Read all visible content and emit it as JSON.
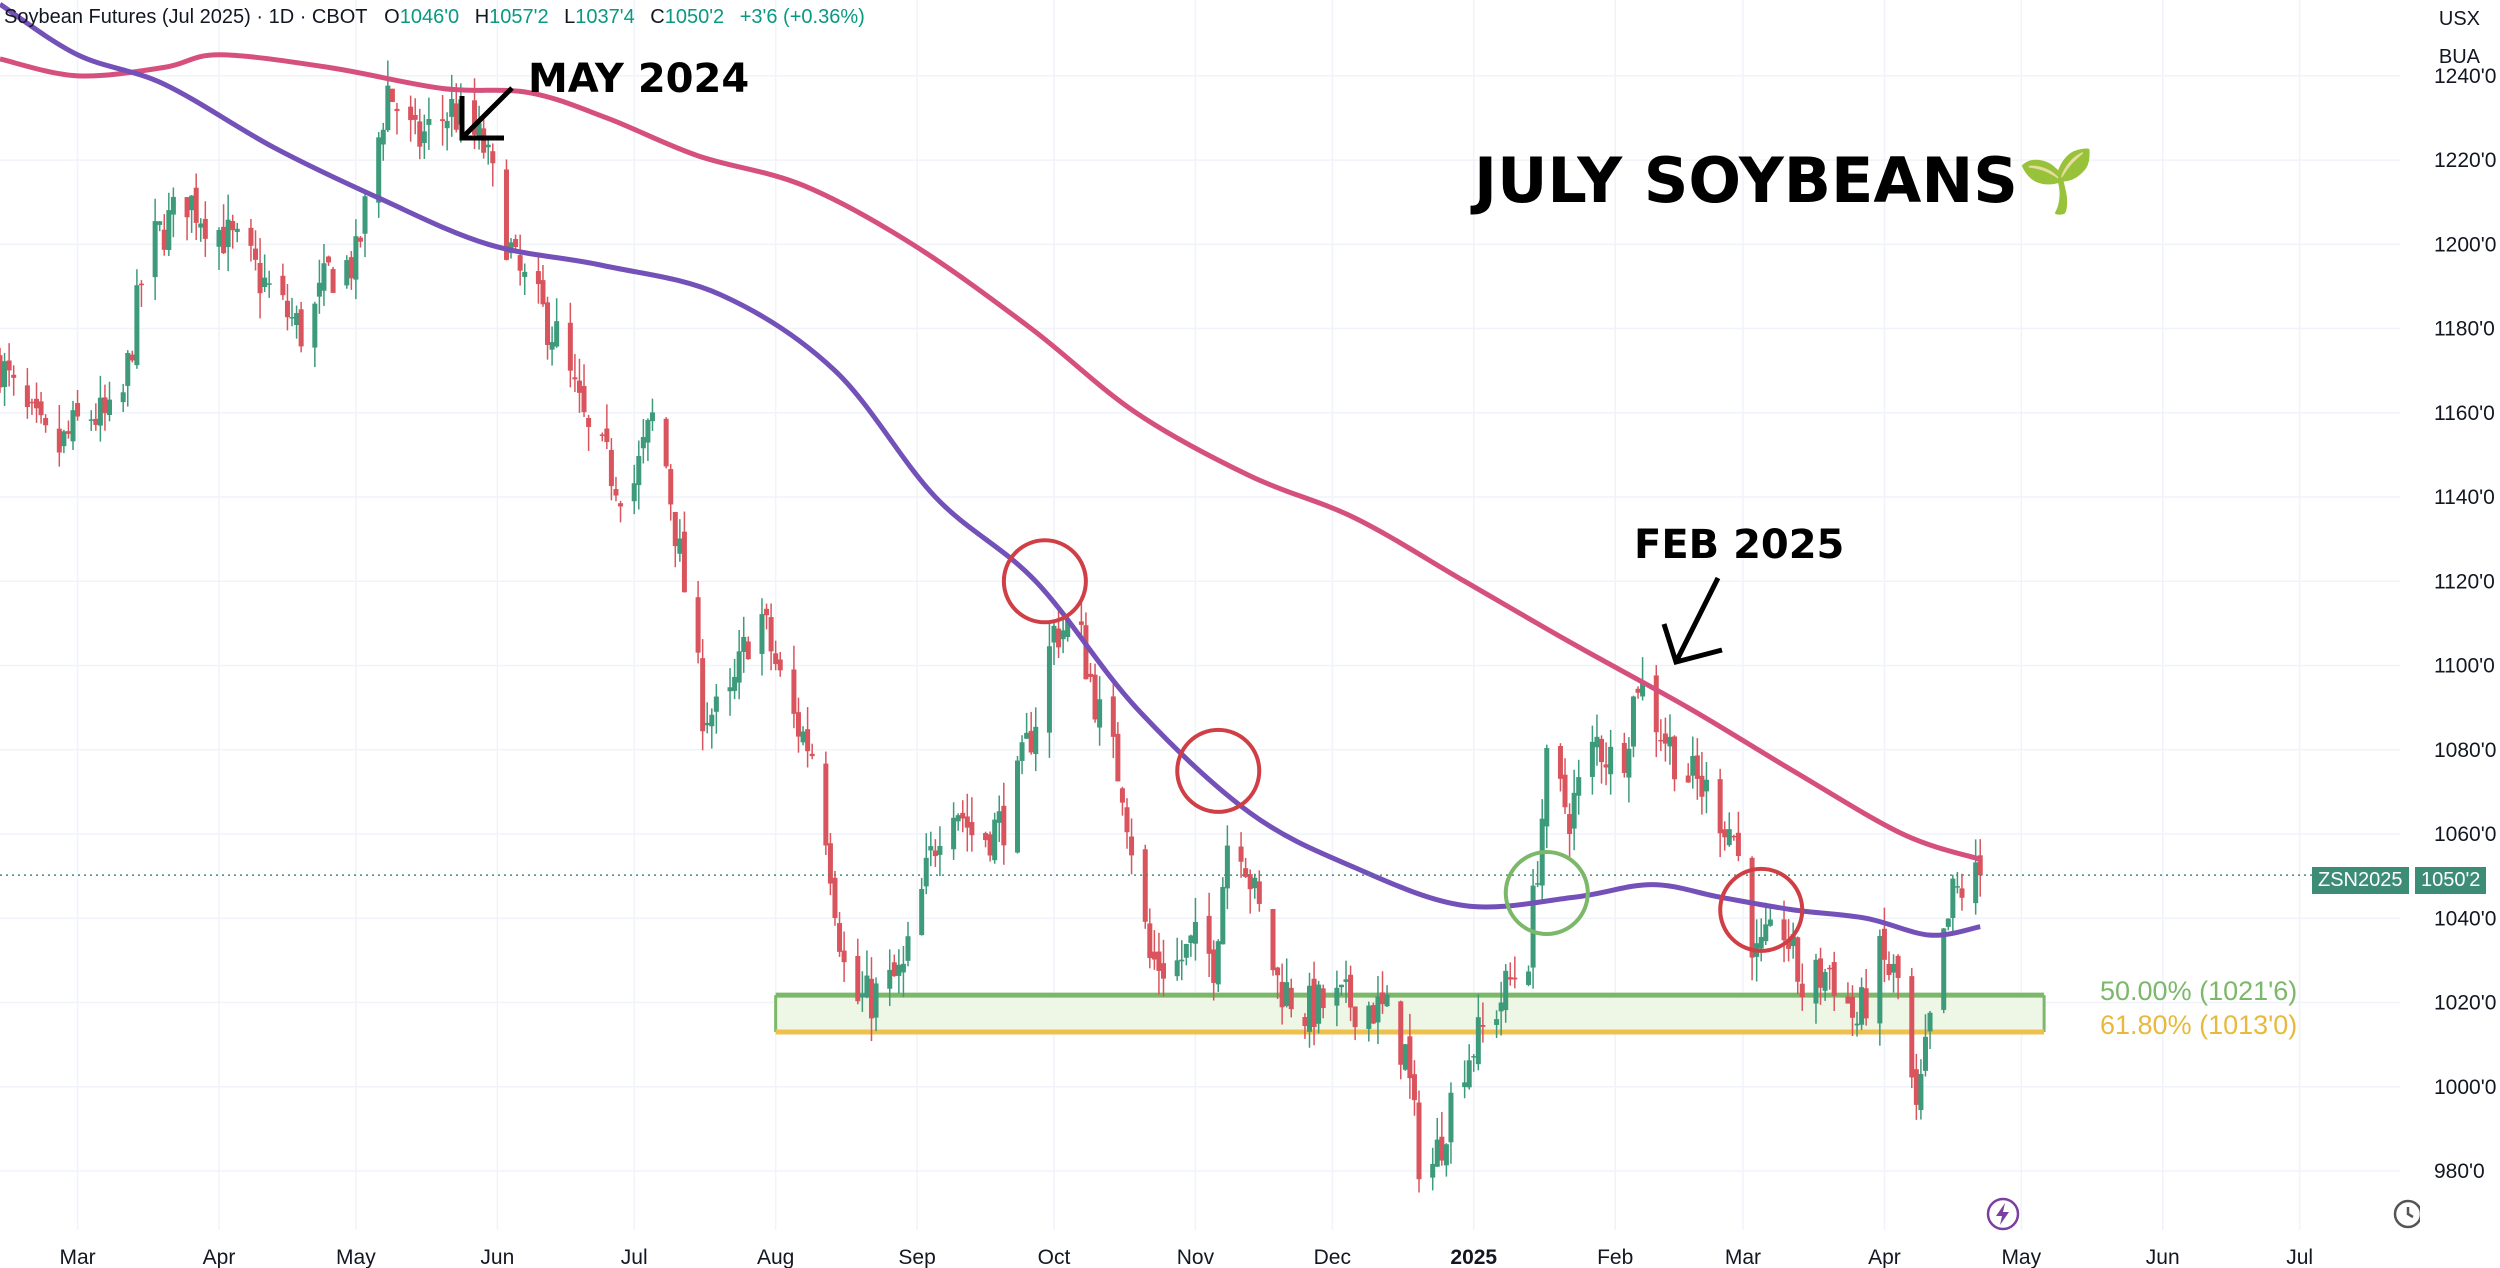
{
  "header": {
    "symbol_desc": "Soybean Futures (Jul 2025) · 1D · CBOT",
    "open_label": "O",
    "open": "1046'0",
    "high_label": "H",
    "high": "1057'2",
    "low_label": "L",
    "low": "1037'4",
    "close_label": "C",
    "close": "1050'2",
    "change": "+3'6 (+0.36%)"
  },
  "axis_units": {
    "currency": "USX",
    "per": "BUA"
  },
  "title_text": "JULY SOYBEANS",
  "title_emoji": "🌱",
  "annotations": {
    "may": "MAY 2024",
    "feb": "FEB 2025"
  },
  "fib": {
    "level_50": "50.00% (1021'6)",
    "level_618": "61.80% (1013'0)"
  },
  "price_tag": {
    "symbol": "ZSN2025",
    "price": "1050'2"
  },
  "colors": {
    "up": "#3d9a7a",
    "down": "#d9545d",
    "ma_slow": "#d6507e",
    "ma_fast": "#7351b8",
    "fib_50": "#7cb86a",
    "fib_618": "#f0c04c",
    "circle_red": "#cf3f45",
    "circle_green": "#7cb86a"
  },
  "chart_data": {
    "type": "candlestick",
    "title": "JULY SOYBEANS",
    "y_ticks": [
      "980'0",
      "1000'0",
      "1020'0",
      "1040'0",
      "1060'0",
      "1080'0",
      "1100'0",
      "1120'0",
      "1140'0",
      "1160'0",
      "1180'0",
      "1200'0",
      "1220'0",
      "1240'0"
    ],
    "y_tick_values": [
      980,
      1000,
      1020,
      1040,
      1060,
      1080,
      1100,
      1120,
      1140,
      1160,
      1180,
      1200,
      1220,
      1240
    ],
    "ylim": [
      966,
      1258
    ],
    "x_ticks": [
      "Mar",
      "Apr",
      "May",
      "Jun",
      "Jul",
      "Aug",
      "Sep",
      "Oct",
      "Nov",
      "Dec",
      "2025",
      "Feb",
      "Mar",
      "Apr",
      "May",
      "Jun",
      "Jul"
    ],
    "x_tick_dates": [
      "2024-03-01",
      "2024-04-01",
      "2024-05-01",
      "2024-06-01",
      "2024-07-01",
      "2024-08-01",
      "2024-09-01",
      "2024-10-01",
      "2024-11-01",
      "2024-12-01",
      "2025-01-01",
      "2025-02-01",
      "2025-03-01",
      "2025-04-01",
      "2025-05-01",
      "2025-06-01",
      "2025-07-01"
    ],
    "xlim": [
      "2024-02-13",
      "2025-07-23"
    ],
    "last_price": 1050.25,
    "price_path": [
      [
        "2024-02-13",
        1172
      ],
      [
        "2024-02-17",
        1162
      ],
      [
        "2024-02-25",
        1150
      ],
      [
        "2024-03-03",
        1160
      ],
      [
        "2024-03-10",
        1157
      ],
      [
        "2024-03-16",
        1198
      ],
      [
        "2024-03-25",
        1211
      ],
      [
        "2024-04-06",
        1198
      ],
      [
        "2024-04-14",
        1186
      ],
      [
        "2024-04-20",
        1178
      ],
      [
        "2024-04-25",
        1193
      ],
      [
        "2024-05-01",
        1196
      ],
      [
        "2024-05-08",
        1237
      ],
      [
        "2024-05-14",
        1224
      ],
      [
        "2024-05-22",
        1232
      ],
      [
        "2024-05-29",
        1223
      ],
      [
        "2024-06-05",
        1194
      ],
      [
        "2024-06-14",
        1178
      ],
      [
        "2024-06-21",
        1154
      ],
      [
        "2024-06-30",
        1140
      ],
      [
        "2024-07-06",
        1162
      ],
      [
        "2024-07-09",
        1140
      ],
      [
        "2024-07-16",
        1090
      ],
      [
        "2024-07-21",
        1087
      ],
      [
        "2024-07-28",
        1115
      ],
      [
        "2024-08-04",
        1089
      ],
      [
        "2024-08-10",
        1078
      ],
      [
        "2024-08-17",
        1020
      ],
      [
        "2024-08-22",
        1021
      ],
      [
        "2024-08-29",
        1027
      ],
      [
        "2024-09-03",
        1050
      ],
      [
        "2024-09-08",
        1071
      ],
      [
        "2024-09-14",
        1058
      ],
      [
        "2024-09-21",
        1064
      ],
      [
        "2024-09-27",
        1088
      ],
      [
        "2024-10-01",
        1108
      ],
      [
        "2024-10-06",
        1110
      ],
      [
        "2024-10-11",
        1088
      ],
      [
        "2024-10-16",
        1072
      ],
      [
        "2024-10-22",
        1030
      ],
      [
        "2024-10-27",
        1028
      ],
      [
        "2024-11-01",
        1034
      ],
      [
        "2024-11-05",
        1030
      ],
      [
        "2024-11-09",
        1068
      ],
      [
        "2024-11-14",
        1045
      ],
      [
        "2024-11-19",
        1025
      ],
      [
        "2024-11-25",
        1018
      ],
      [
        "2024-12-01",
        1020
      ],
      [
        "2024-12-08",
        1020
      ],
      [
        "2024-12-13",
        1017
      ],
      [
        "2024-12-17",
        1008
      ],
      [
        "2024-12-21",
        975
      ],
      [
        "2024-12-25",
        988
      ],
      [
        "2024-12-29",
        1005
      ],
      [
        "2025-01-03",
        1013
      ],
      [
        "2025-01-09",
        1025
      ],
      [
        "2025-01-13",
        1032
      ],
      [
        "2025-01-17",
        1075
      ],
      [
        "2025-01-22",
        1065
      ],
      [
        "2025-01-28",
        1082
      ],
      [
        "2025-02-02",
        1075
      ],
      [
        "2025-02-06",
        1097
      ],
      [
        "2025-02-11",
        1085
      ],
      [
        "2025-02-16",
        1075
      ],
      [
        "2025-02-21",
        1070
      ],
      [
        "2025-02-27",
        1060
      ],
      [
        "2025-03-04",
        1030
      ],
      [
        "2025-03-10",
        1038
      ],
      [
        "2025-03-14",
        1023
      ],
      [
        "2025-03-20",
        1028
      ],
      [
        "2025-03-26",
        1015
      ],
      [
        "2025-03-31",
        1030
      ],
      [
        "2025-04-04",
        1025
      ],
      [
        "2025-04-08",
        992
      ],
      [
        "2025-04-12",
        1022
      ],
      [
        "2025-04-16",
        1045
      ],
      [
        "2025-04-19",
        1048
      ],
      [
        "2025-04-22",
        1050.25
      ]
    ],
    "moving_average_slow": [
      [
        "2024-02-13",
        1244
      ],
      [
        "2024-03-01",
        1240
      ],
      [
        "2024-03-20",
        1242
      ],
      [
        "2024-04-01",
        1245
      ],
      [
        "2024-04-25",
        1242
      ],
      [
        "2024-05-20",
        1237
      ],
      [
        "2024-06-08",
        1236
      ],
      [
        "2024-06-25",
        1230
      ],
      [
        "2024-07-15",
        1221
      ],
      [
        "2024-08-07",
        1214
      ],
      [
        "2024-08-31",
        1200
      ],
      [
        "2024-09-26",
        1180
      ],
      [
        "2024-10-19",
        1160
      ],
      [
        "2024-11-13",
        1145
      ],
      [
        "2024-12-06",
        1135
      ],
      [
        "2024-12-30",
        1120
      ],
      [
        "2025-01-23",
        1105
      ],
      [
        "2025-02-17",
        1090
      ],
      [
        "2025-03-12",
        1075
      ],
      [
        "2025-04-05",
        1060
      ],
      [
        "2025-04-22",
        1054
      ]
    ],
    "moving_average_fast": [
      [
        "2024-02-13",
        1257
      ],
      [
        "2024-03-01",
        1245
      ],
      [
        "2024-03-20",
        1238
      ],
      [
        "2024-04-13",
        1223
      ],
      [
        "2024-05-06",
        1211
      ],
      [
        "2024-05-30",
        1200
      ],
      [
        "2024-06-24",
        1195
      ],
      [
        "2024-07-20",
        1188
      ],
      [
        "2024-08-14",
        1170
      ],
      [
        "2024-09-05",
        1140
      ],
      [
        "2024-09-27",
        1120
      ],
      [
        "2024-10-19",
        1090
      ],
      [
        "2024-11-13",
        1065
      ],
      [
        "2024-12-06",
        1052
      ],
      [
        "2024-12-30",
        1043
      ],
      [
        "2025-01-23",
        1045
      ],
      [
        "2025-02-09",
        1048
      ],
      [
        "2025-02-24",
        1045
      ],
      [
        "2025-03-12",
        1042
      ],
      [
        "2025-03-28",
        1040
      ],
      [
        "2025-04-11",
        1036
      ],
      [
        "2025-04-22",
        1038
      ]
    ],
    "fib_levels": [
      {
        "ratio": 0.5,
        "price": 1021.75
      },
      {
        "ratio": 0.618,
        "price": 1013.0
      }
    ],
    "fib_zone_start": "2024-08-01",
    "fib_zone_end": "2025-05-06",
    "highlight_circles": [
      {
        "date": "2024-09-29",
        "price": 1120,
        "color": "red"
      },
      {
        "date": "2024-11-06",
        "price": 1075,
        "color": "red"
      },
      {
        "date": "2025-01-17",
        "price": 1046,
        "color": "green"
      },
      {
        "date": "2025-03-05",
        "price": 1042,
        "color": "red"
      }
    ]
  }
}
